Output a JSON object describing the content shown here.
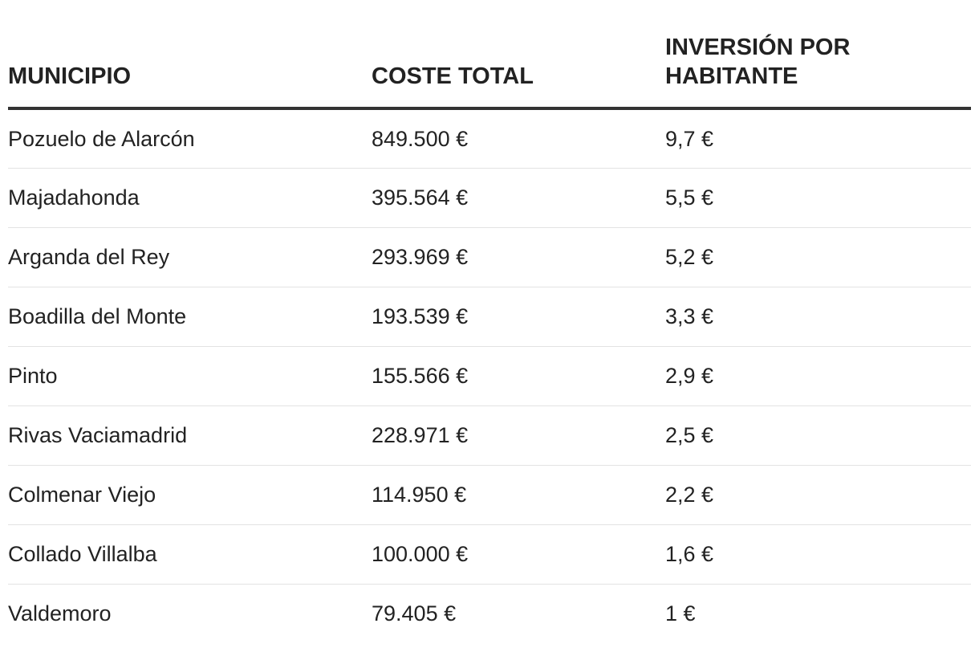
{
  "chart_data": {
    "type": "table",
    "columns": [
      "MUNICIPIO",
      "COSTE TOTAL",
      "INVERSIÓN POR HABITANTE"
    ],
    "rows": [
      [
        "Pozuelo de Alarcón",
        "849.500 €",
        "9,7 €"
      ],
      [
        "Majadahonda",
        "395.564 €",
        "5,5 €"
      ],
      [
        "Arganda del Rey",
        "293.969 €",
        "5,2 €"
      ],
      [
        "Boadilla del Monte",
        "193.539 €",
        "3,3 €"
      ],
      [
        "Pinto",
        "155.566 €",
        "2,9 €"
      ],
      [
        "Rivas Vaciamadrid",
        "228.971 €",
        "2,5 €"
      ],
      [
        "Colmenar Viejo",
        "114.950 €",
        "2,2 €"
      ],
      [
        "Collado Villalba",
        "100.000 €",
        "1,6 €"
      ],
      [
        "Valdemoro",
        "79.405 €",
        "1 €"
      ]
    ]
  },
  "colors": {
    "text": "#222222",
    "header_rule": "#333333",
    "row_divider": "#e3e3e3"
  }
}
